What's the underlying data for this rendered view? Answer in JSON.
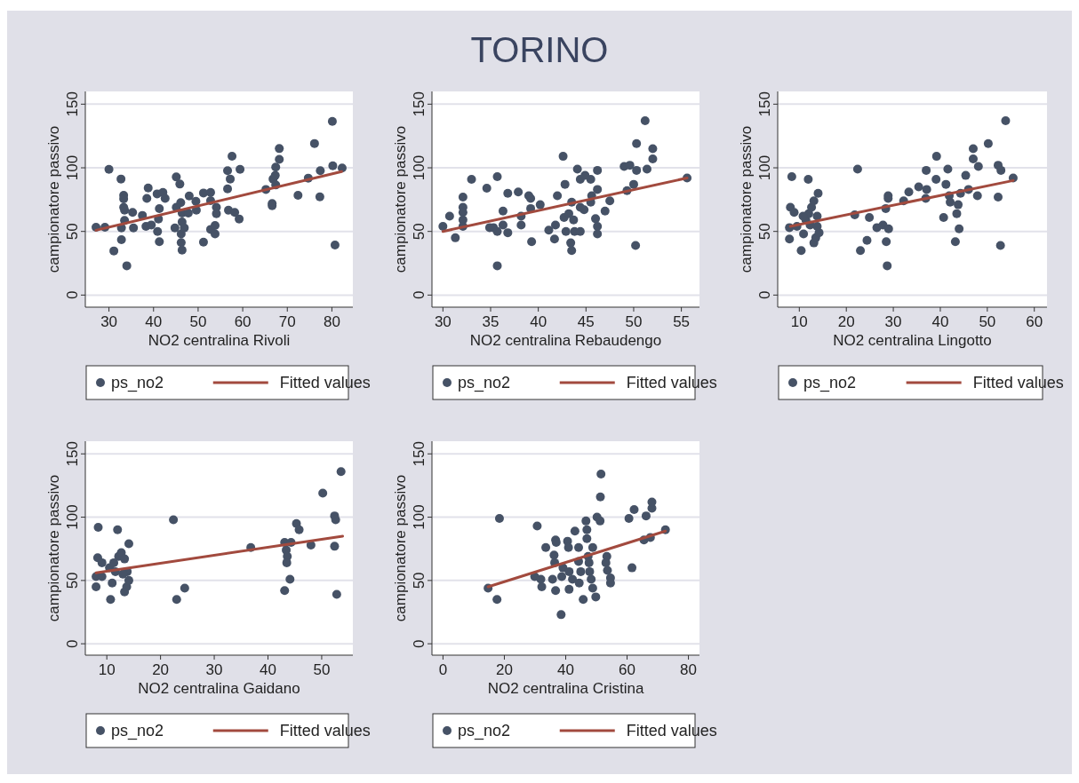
{
  "chart_data": [
    {
      "type": "other",
      "title": "TORINO"
    },
    {
      "type": "scatter",
      "xlabel": "NO2 centralina Rivoli",
      "ylabel": "campionatore passivo",
      "xlim": [
        24.7,
        84.7
      ],
      "xticks": [
        30,
        40,
        50,
        60,
        70,
        80
      ],
      "ylim": [
        -9.5,
        160
      ],
      "yticks": [
        0,
        50,
        100,
        150
      ],
      "grid": "y",
      "legend": "bottom",
      "series": [
        {
          "name": "ps_no2",
          "type": "scatter",
          "marker": "circle",
          "color": "#465266",
          "x": [
            27.1,
            29.1,
            30,
            31.1,
            32.7,
            32.8,
            33.3,
            33.3,
            33.3,
            33.5,
            33.5,
            32.8,
            34,
            35.3,
            35.5,
            37.5,
            38.3,
            38.8,
            38.5,
            39.5,
            40.8,
            41.3,
            40.9,
            41.3,
            41.1,
            42.1,
            42.6,
            45.1,
            45.9,
            44.8,
            45.1,
            46.1,
            46.4,
            46.4,
            46.2,
            46.2,
            46.4,
            46.9,
            48,
            47.8,
            49.5,
            49.6,
            51.2,
            51.2,
            52.8,
            52.8,
            52.8,
            53.8,
            53.8,
            54.1,
            54.1,
            56.6,
            56.6,
            57.2,
            57.6,
            56.8,
            58.2,
            59.2,
            59.4,
            65.2,
            66.6,
            66.6,
            66.8,
            67.3,
            67.4,
            67.4,
            68.2,
            68.2,
            72.4,
            74.7,
            76.1,
            77.4,
            77.3,
            80.1,
            80.2,
            80.7,
            82.3
          ],
          "values": [
            53.3,
            53.3,
            98.8,
            34.7,
            91.2,
            43.5,
            78.4,
            75.6,
            69,
            66.7,
            58.6,
            52.8,
            23,
            64.9,
            52.8,
            62.6,
            54,
            84.2,
            76,
            55.1,
            79.5,
            67.9,
            50,
            41.9,
            59.8,
            80.7,
            76,
            92.8,
            87.2,
            52.8,
            69,
            72.6,
            64.4,
            57.4,
            48.1,
            41.2,
            35.3,
            52.8,
            77.9,
            64.4,
            73.7,
            66.7,
            80.2,
            41.6,
            80.7,
            74.2,
            51.6,
            54.7,
            48.1,
            69,
            64,
            83.5,
            97.7,
            91.2,
            109.1,
            66.7,
            64.9,
            59.8,
            98.8,
            83,
            71.9,
            70.2,
            91.2,
            94,
            100.5,
            86.5,
            106.7,
            115.1,
            78.4,
            91.9,
            119.1,
            97.7,
            77.2,
            136.5,
            101.6,
            39.3,
            99.8
          ]
        },
        {
          "name": "Fitted values",
          "type": "line",
          "color": "#a24a3e",
          "x": [
            27.1,
            82.2
          ],
          "values": [
            50.9,
            97
          ]
        }
      ]
    },
    {
      "type": "scatter",
      "xlabel": "NO2 centralina Rebaudengo",
      "ylabel": "campionatore passivo",
      "xlim": [
        28.85,
        56.9
      ],
      "xticks": [
        30,
        35,
        40,
        45,
        50,
        55
      ],
      "ylim": [
        -9.5,
        160
      ],
      "yticks": [
        0,
        50,
        100,
        150
      ],
      "grid": "y",
      "legend": "bottom",
      "series": [
        {
          "name": "ps_no2",
          "type": "scatter",
          "marker": "circle",
          "color": "#465266",
          "x": [
            30,
            30.7,
            31.3,
            32.1,
            32.1,
            32.1,
            32.1,
            32.1,
            33,
            34.6,
            35.7,
            34.9,
            35.3,
            35.7,
            35.7,
            36.3,
            36.3,
            36.8,
            36.8,
            37.9,
            38.2,
            38.2,
            39,
            39.2,
            39.2,
            39.3,
            40.2,
            41.1,
            41.8,
            41.7,
            42,
            42.6,
            42.8,
            42.7,
            42.9,
            43.2,
            43.4,
            43.5,
            43.5,
            43.7,
            43.8,
            44.1,
            44.4,
            44.4,
            44.4,
            44.8,
            44.9,
            45.5,
            45.5,
            45.6,
            46,
            46.2,
            46.2,
            46.2,
            46.2,
            47,
            47.5,
            49,
            49.6,
            49.3,
            50,
            50.3,
            50.3,
            50.2,
            51.2,
            51.4,
            52,
            52,
            55.6
          ],
          "values": [
            54,
            62,
            45,
            77,
            69,
            65,
            59,
            54,
            91,
            84,
            93,
            53,
            53,
            50,
            23,
            66,
            55,
            49,
            80,
            81,
            62,
            55,
            78,
            76,
            68,
            42,
            71,
            51,
            55,
            44,
            78,
            109,
            87,
            61,
            50,
            64,
            41,
            35,
            73,
            59,
            50,
            99,
            91,
            50,
            69,
            67,
            94,
            91,
            73,
            78,
            60,
            54,
            48,
            83,
            98,
            66,
            74,
            101,
            102,
            82,
            87,
            119,
            98,
            39,
            137,
            99,
            115,
            107,
            92
          ]
        },
        {
          "name": "Fitted values",
          "type": "line",
          "color": "#a24a3e",
          "x": [
            30,
            55.6
          ],
          "values": [
            50,
            92
          ]
        }
      ]
    },
    {
      "type": "scatter",
      "xlabel": "NO2 centralina Lingotto",
      "ylabel": "campionatore passivo",
      "xlim": [
        5.4,
        62.7
      ],
      "xticks": [
        10,
        20,
        30,
        40,
        50,
        60
      ],
      "ylim": [
        -9.5,
        160
      ],
      "yticks": [
        0,
        50,
        100,
        150
      ],
      "grid": "y",
      "legend": "bottom",
      "series": [
        {
          "name": "ps_no2",
          "type": "scatter",
          "marker": "circle",
          "color": "#465266",
          "x": [
            8.4,
            11.9,
            8.1,
            8.9,
            7.9,
            7.9,
            9.5,
            10.4,
            10.9,
            11.4,
            12,
            12.3,
            12.6,
            13.1,
            13.1,
            13.5,
            13.8,
            14,
            14.2,
            13.8,
            10.8,
            21.8,
            22.4,
            23,
            24.4,
            24.9,
            26.5,
            27.8,
            28.4,
            28.5,
            28.7,
            28.9,
            28.9,
            29,
            32.2,
            33.3,
            35.4,
            37,
            37.1,
            36.9,
            39.2,
            39.1,
            40.7,
            41.2,
            41.6,
            41.9,
            42.1,
            43.2,
            43.5,
            44,
            43.8,
            44.3,
            45.4,
            46,
            47,
            47,
            47.9,
            48.1,
            50.2,
            52.3,
            52.3,
            52.9,
            52.8,
            53.9,
            55.5
          ],
          "values": [
            93,
            91,
            69,
            65,
            53,
            44,
            54,
            35,
            48,
            59,
            64,
            55,
            69,
            74,
            41,
            45,
            62,
            80,
            49,
            54,
            62,
            63,
            99,
            35,
            43,
            61,
            53,
            55,
            68,
            42,
            23,
            78,
            76,
            52,
            74,
            81,
            85,
            98,
            83,
            76,
            109,
            91,
            61,
            87,
            99,
            78,
            73,
            42,
            64,
            52,
            71,
            80,
            94,
            83,
            115,
            107,
            78,
            101,
            119,
            77,
            102,
            98,
            39,
            137,
            92
          ]
        },
        {
          "name": "Fitted values",
          "type": "line",
          "color": "#a24a3e",
          "x": [
            8.1,
            55.5
          ],
          "values": [
            54,
            90
          ]
        }
      ]
    },
    {
      "type": "scatter",
      "xlabel": "NO2 centralina Gaidano",
      "ylabel": "campionatore passivo",
      "xlim": [
        6,
        55.8
      ],
      "xticks": [
        10,
        20,
        30,
        40,
        50
      ],
      "ylim": [
        -9,
        160
      ],
      "yticks": [
        0,
        50,
        100,
        150
      ],
      "grid": "y",
      "legend": "bottom",
      "series": [
        {
          "name": "ps_no2",
          "type": "scatter",
          "marker": "circle",
          "color": "#465266",
          "x": [
            8.4,
            12,
            8.3,
            9.1,
            8,
            8,
            9.1,
            10.7,
            11,
            10.5,
            11.3,
            12.2,
            12.7,
            13.3,
            13.3,
            13.7,
            13.8,
            14.1,
            14.1,
            13,
            11.6,
            22.4,
            23,
            24.5,
            36.8,
            43.1,
            43.1,
            43.4,
            43.6,
            43.5,
            44.1,
            44.3,
            45.3,
            45.8,
            48,
            50.2,
            52.4,
            52.6,
            52.4,
            52.8,
            53.6
          ],
          "values": [
            92,
            90,
            68,
            64,
            53,
            45,
            53,
            35,
            48,
            60,
            64,
            69,
            72,
            67,
            41,
            45,
            57,
            79,
            50,
            55,
            57,
            98,
            35,
            44,
            76,
            42,
            80,
            74,
            69,
            64,
            51,
            80,
            95,
            90,
            78,
            119,
            101,
            98,
            77,
            39,
            136
          ]
        },
        {
          "name": "Fitted values",
          "type": "line",
          "color": "#a24a3e",
          "x": [
            8,
            53.9
          ],
          "values": [
            56,
            85
          ]
        }
      ]
    },
    {
      "type": "scatter",
      "xlabel": "NO2 centralina Cristina",
      "ylabel": "campionatore passivo",
      "xlim": [
        -3.6,
        83.6
      ],
      "xticks": [
        0,
        20,
        40,
        60,
        80
      ],
      "ylim": [
        -9,
        160
      ],
      "yticks": [
        0,
        50,
        100,
        150
      ],
      "grid": "y",
      "legend": "bottom",
      "series": [
        {
          "name": "ps_no2",
          "type": "scatter",
          "marker": "circle",
          "color": "#465266",
          "x": [
            18.4,
            14.7,
            17.6,
            30.7,
            29.9,
            31.9,
            32.2,
            33.5,
            36.7,
            36.9,
            36.2,
            36.4,
            35.7,
            36.7,
            38.5,
            38.7,
            39.1,
            40.6,
            40.9,
            41.1,
            41.1,
            42.2,
            43,
            44.2,
            44.2,
            44.9,
            44.4,
            45.7,
            46.6,
            46.9,
            46.9,
            47.3,
            47.6,
            47.8,
            48.3,
            48.8,
            48.8,
            49.8,
            50.2,
            51.2,
            51.3,
            51.5,
            53.4,
            53.1,
            53.6,
            54.6,
            54.6,
            60.6,
            61.6,
            62.3,
            65.5,
            66.2,
            67.6,
            68.1,
            68.1,
            72.5
          ],
          "values": [
            99,
            44,
            35,
            93,
            53,
            51,
            45,
            76,
            82,
            80,
            70,
            64,
            51,
            42,
            23,
            53,
            60,
            81,
            76,
            57,
            43,
            51,
            89,
            76,
            65,
            57,
            48,
            35,
            97,
            90,
            83,
            69,
            64,
            57,
            51,
            76,
            44,
            37,
            100,
            97,
            116,
            134,
            69,
            64,
            58,
            52,
            48,
            99,
            60,
            106,
            82,
            101,
            84,
            107,
            112,
            90
          ]
        },
        {
          "name": "Fitted values",
          "type": "line",
          "color": "#a24a3e",
          "x": [
            14.7,
            72.5
          ],
          "values": [
            45,
            89
          ]
        }
      ]
    }
  ]
}
